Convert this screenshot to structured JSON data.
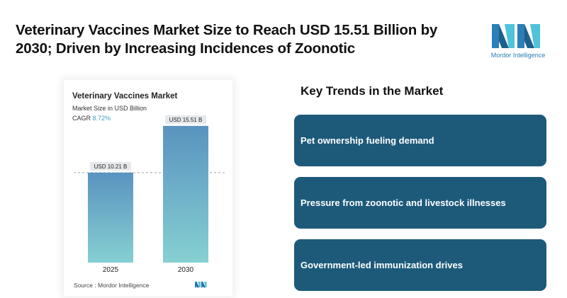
{
  "header": {
    "title": "Veterinary Vaccines Market Size to Reach USD 15.51 Billion by 2030; Driven by Increasing Incidences of Zoonotic"
  },
  "brand": {
    "name": "Mordor Intelligence",
    "logo_icon": "mordor-intelligence-logo",
    "colors": {
      "logo_dark": "#1f5f8b",
      "logo_light": "#4fc3d9"
    }
  },
  "chart_card": {
    "title": "Veterinary Vaccines Market",
    "subtitle": "Market Size in USD Billion",
    "cagr_label": "CAGR",
    "cagr_value": "8.72%",
    "source": "Source :  Mordor Intelligence"
  },
  "chart_data": {
    "type": "bar",
    "title": "Veterinary Vaccines Market",
    "ylabel": "Market Size in USD Billion",
    "categories": [
      "2025",
      "2030"
    ],
    "values": [
      10.21,
      15.51
    ],
    "data_labels": [
      "USD 10.21 B",
      "USD 15.51 B"
    ],
    "ylim": [
      0,
      17
    ],
    "grid": false,
    "reference_line": "dashed line at 2025 value",
    "colors": {
      "bar_top": "#5a93bf",
      "bar_bottom": "#86d0d2"
    }
  },
  "trends": {
    "title": "Key Trends in the Market",
    "items": [
      "Pet ownership fueling demand",
      "Pressure from zoonotic and livestock illnesses",
      "Government-led immunization drives"
    ],
    "card_color": "#1d5a7a"
  }
}
